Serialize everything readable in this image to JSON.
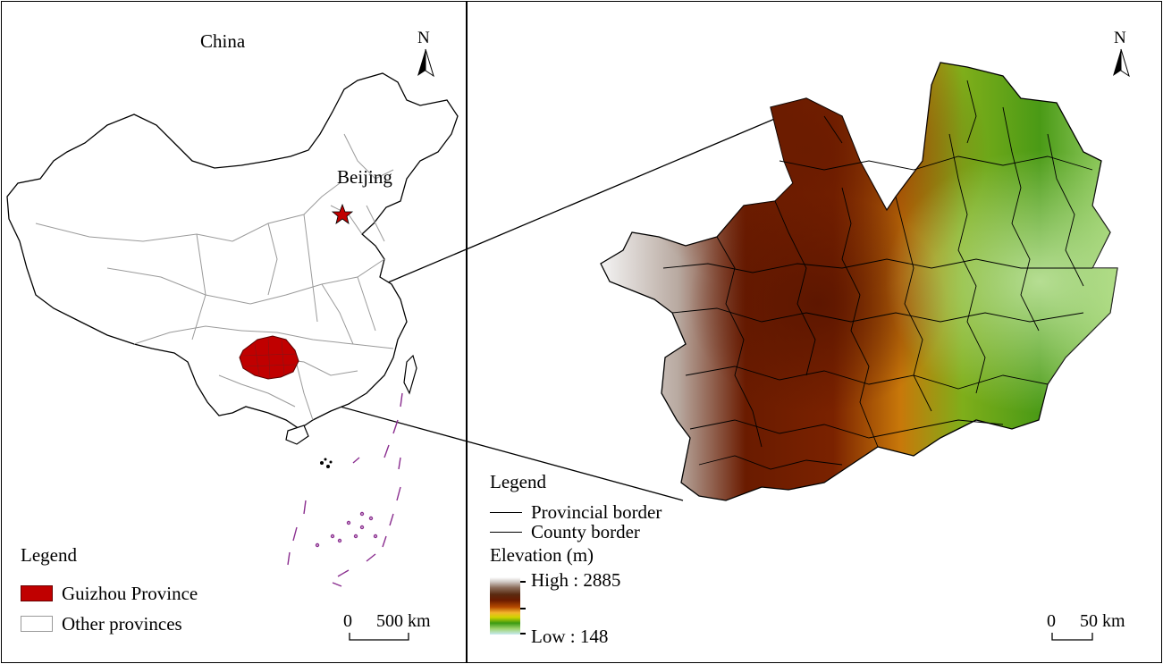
{
  "left_map": {
    "title": "China",
    "capital_label": "Beijing",
    "north_label": "N",
    "legend": {
      "title": "Legend",
      "items": [
        {
          "label": "Guizhou Province",
          "color": "#c00000"
        },
        {
          "label": "Other provinces",
          "color": "#ffffff"
        }
      ]
    },
    "scale": {
      "start": "0",
      "end": "500 km"
    }
  },
  "right_map": {
    "north_label": "N",
    "legend": {
      "title": "Legend",
      "lines": [
        "Provincial border",
        "County border"
      ]
    },
    "elevation": {
      "title": "Elevation (m)",
      "high": "High : 2885",
      "low": "Low : 148",
      "colors": [
        "#ffffff",
        "#5a2a10",
        "#6a1b00",
        "#f3b42c",
        "#3c9a12",
        "#c8eaf2"
      ]
    },
    "scale": {
      "start": "0",
      "end": "50 km"
    }
  }
}
